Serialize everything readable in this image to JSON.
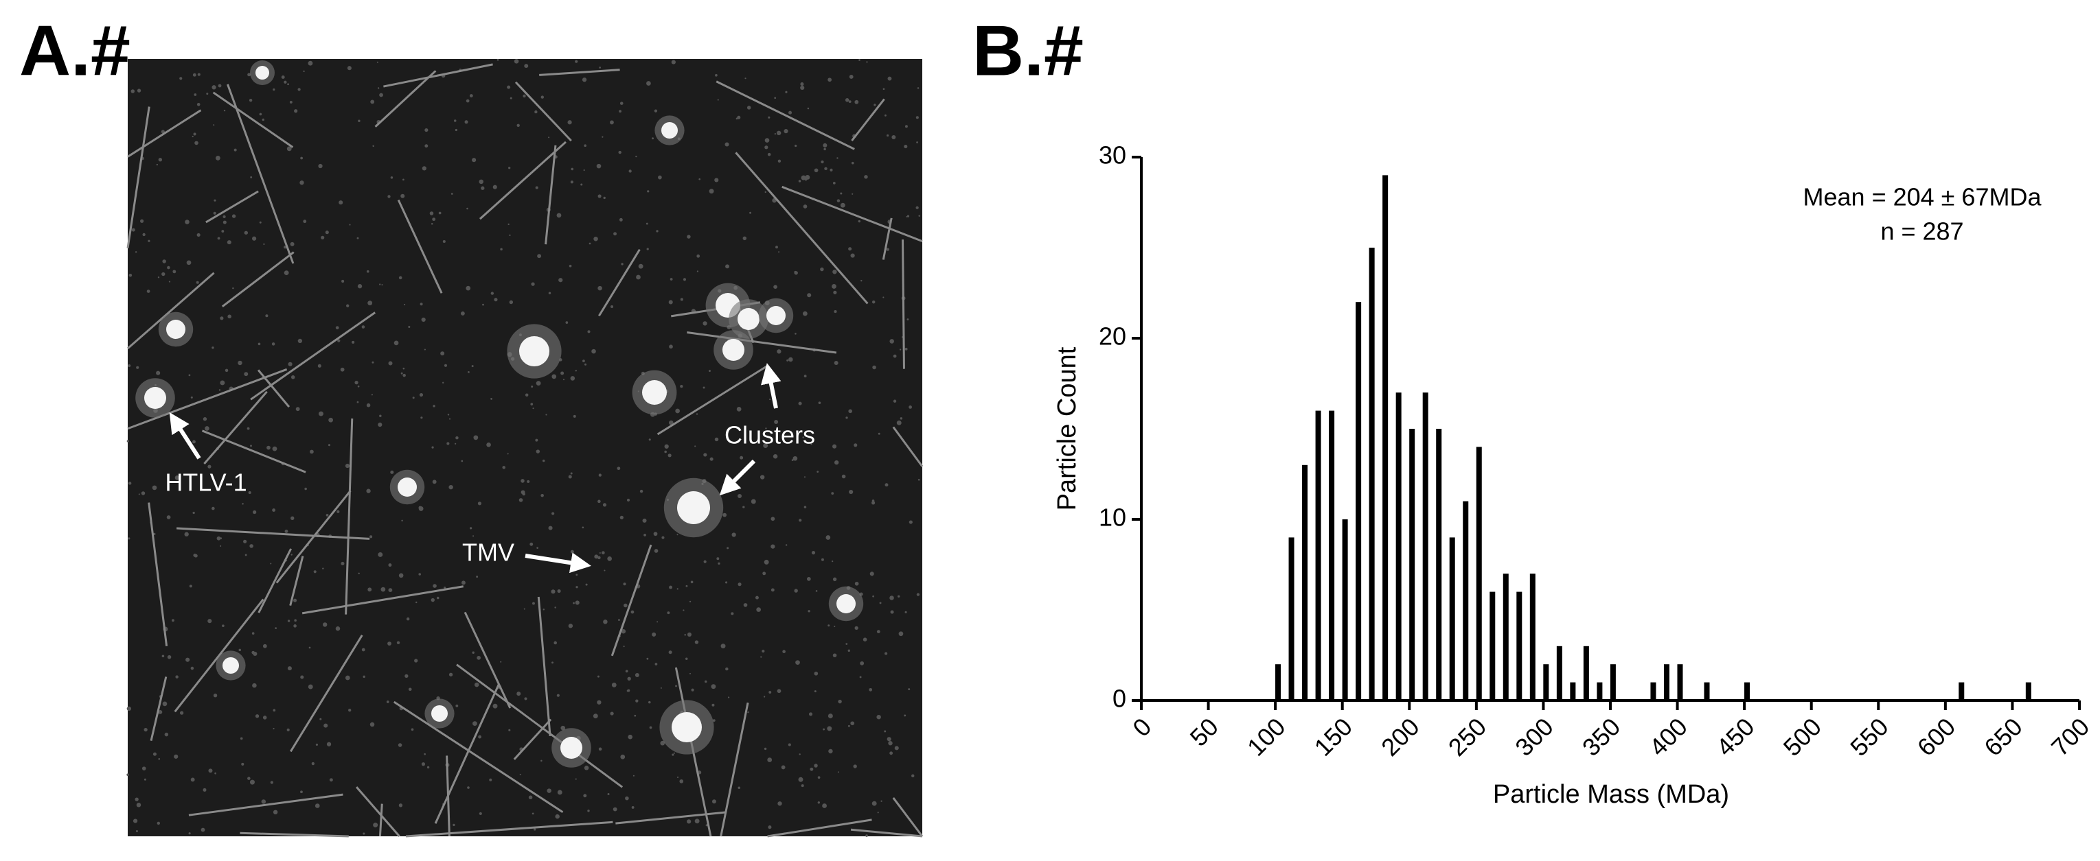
{
  "panel_a": {
    "label": "A.#",
    "annotations": [
      "HTLV-1",
      "TMV",
      "Clusters"
    ]
  },
  "chart_data": {
    "type": "bar",
    "panel_label": "B.#",
    "x_label": "Particle Mass (MDa)",
    "y_label": "Particle Count",
    "annotations": [
      "Mean = 204 ± 67MDa",
      "n = 287"
    ],
    "x": [
      102,
      112,
      122,
      132,
      142,
      152,
      162,
      172,
      182,
      192,
      202,
      212,
      222,
      232,
      242,
      252,
      262,
      272,
      282,
      292,
      302,
      312,
      322,
      332,
      342,
      352,
      382,
      392,
      402,
      422,
      452,
      612,
      662
    ],
    "values": [
      2,
      9,
      13,
      16,
      16,
      10,
      22,
      25,
      29,
      17,
      15,
      17,
      15,
      9,
      11,
      14,
      6,
      7,
      6,
      7,
      2,
      3,
      1,
      3,
      1,
      2,
      1,
      2,
      2,
      1,
      1,
      1,
      1
    ],
    "color": "#000000",
    "xlim": [
      0,
      700
    ],
    "xticks": [
      0,
      50,
      100,
      150,
      200,
      250,
      300,
      350,
      400,
      450,
      500,
      550,
      600,
      650,
      700
    ],
    "ylim": [
      0,
      30
    ],
    "yticks": [
      0,
      10,
      20,
      30
    ],
    "grid": false
  }
}
